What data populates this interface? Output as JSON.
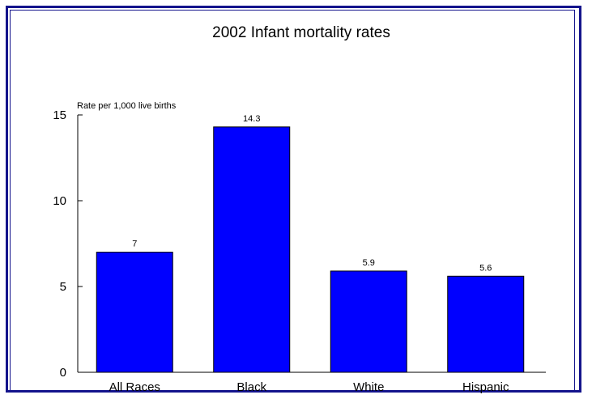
{
  "chart_data": {
    "type": "bar",
    "title": "2002 Infant mortality rates",
    "ylabel": "Rate per 1,000 live births",
    "xlabel": "",
    "categories": [
      "All Races",
      "Black",
      "White",
      "Hispanic"
    ],
    "values": [
      7,
      14.3,
      5.9,
      5.6
    ],
    "data_labels": [
      "7",
      "14.3",
      "5.9",
      "5.6"
    ],
    "ylim": [
      0,
      15
    ],
    "yticks": [
      0,
      5,
      10,
      15
    ],
    "grid": false,
    "legend": "none",
    "bar_color": "#0000ff",
    "frame_color": "#14148c"
  }
}
